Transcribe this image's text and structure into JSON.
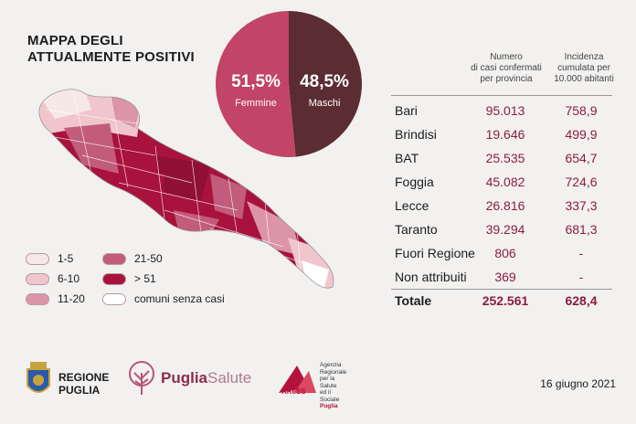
{
  "title_line1": "MAPPA DEGLI",
  "title_line2": "ATTUALMENTE POSITIVI",
  "gender": {
    "female_pct": "51,5%",
    "female_label": "Femmine",
    "male_pct": "48,5%",
    "male_label": "Maschi",
    "female_color": "#c24466",
    "male_color": "#5b2d33"
  },
  "legend": [
    {
      "label": "1-5",
      "color": "#f7e8e8"
    },
    {
      "label": "6-10",
      "color": "#f0c6cc"
    },
    {
      "label": "11-20",
      "color": "#dc94aa"
    },
    {
      "label": "21-50",
      "color": "#c25c7c"
    },
    {
      "label": "> 51",
      "color": "#a8123c"
    },
    {
      "label": "comuni senza casi",
      "color": "#ffffff"
    }
  ],
  "table": {
    "header_cases": [
      "Numero",
      "di casi confermati",
      "per provincia"
    ],
    "header_incidence": [
      "Incidenza",
      "cumulata per",
      "10.000 abitanti"
    ],
    "rows": [
      {
        "name": "Bari",
        "cases": "95.013",
        "incidence": "758,9"
      },
      {
        "name": "Brindisi",
        "cases": "19.646",
        "incidence": "499,9"
      },
      {
        "name": "BAT",
        "cases": "25.535",
        "incidence": "654,7"
      },
      {
        "name": "Foggia",
        "cases": "45.082",
        "incidence": "724,6"
      },
      {
        "name": "Lecce",
        "cases": "26.816",
        "incidence": "337,3"
      },
      {
        "name": "Taranto",
        "cases": "39.294",
        "incidence": "681,3"
      },
      {
        "name": "Fuori Regione",
        "cases": "806",
        "incidence": "-"
      },
      {
        "name": "Non attribuiti",
        "cases": "369",
        "incidence": "-"
      }
    ],
    "total": {
      "name": "Totale",
      "cases": "252.561",
      "incidence": "628,4"
    }
  },
  "chart_data": {
    "type": "pie",
    "categories": [
      "Femmine",
      "Maschi"
    ],
    "values": [
      51.5,
      48.5
    ]
  },
  "footer": {
    "region_line1": "REGIONE",
    "region_line2": "PUGLIA",
    "puglia_a": "Puglia",
    "puglia_b": "Salute",
    "aress": "AReSS",
    "aress_desc": [
      "Agenzia",
      "Regionale",
      "per la Salute",
      "ed il Sociale",
      "Puglia"
    ],
    "date": "16 giugno 2021"
  }
}
